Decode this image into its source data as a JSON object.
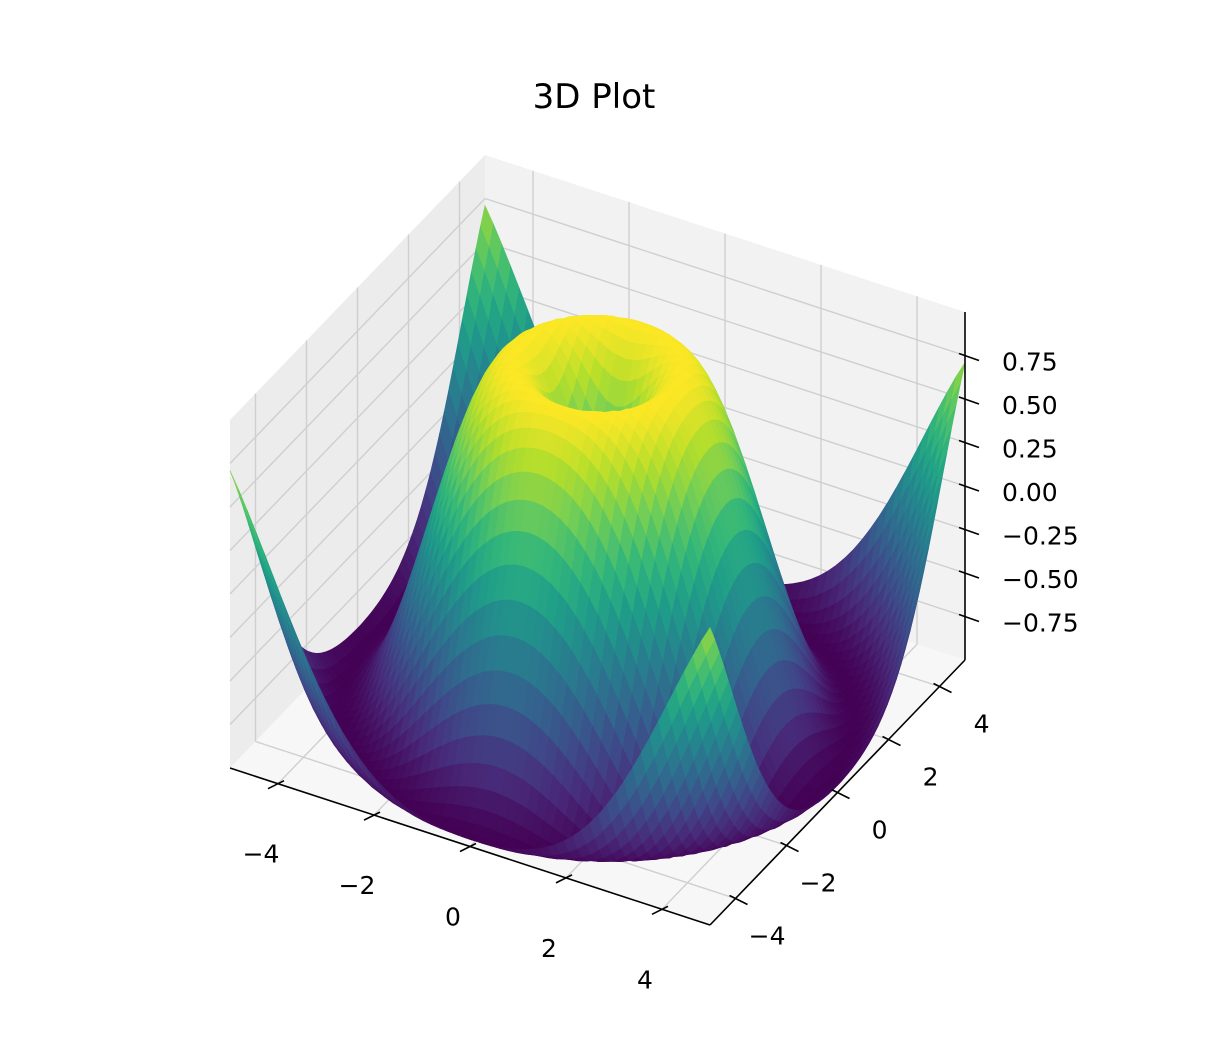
{
  "chart_data": {
    "type": "surface",
    "title": "3D Plot",
    "function": "z = sin(sqrt(x^2 + y^2))",
    "colormap": "viridis",
    "grid": true,
    "x_range": [
      -5,
      5
    ],
    "y_range": [
      -5,
      5
    ],
    "z_range": [
      -1,
      1
    ],
    "x_ticks": [
      {
        "value": -4,
        "label": "−4"
      },
      {
        "value": -2,
        "label": "−2"
      },
      {
        "value": 0,
        "label": "0"
      },
      {
        "value": 2,
        "label": "2"
      },
      {
        "value": 4,
        "label": "4"
      }
    ],
    "y_ticks": [
      {
        "value": -4,
        "label": "−4"
      },
      {
        "value": -2,
        "label": "−2"
      },
      {
        "value": 0,
        "label": "0"
      },
      {
        "value": 2,
        "label": "2"
      },
      {
        "value": 4,
        "label": "4"
      }
    ],
    "z_ticks": [
      {
        "value": 0.75,
        "label": "0.75"
      },
      {
        "value": 0.5,
        "label": "0.50"
      },
      {
        "value": 0.25,
        "label": "0.25"
      },
      {
        "value": 0.0,
        "label": "0.00"
      },
      {
        "value": -0.25,
        "label": "−0.25"
      },
      {
        "value": -0.5,
        "label": "−0.50"
      },
      {
        "value": -0.75,
        "label": "−0.75"
      }
    ]
  }
}
